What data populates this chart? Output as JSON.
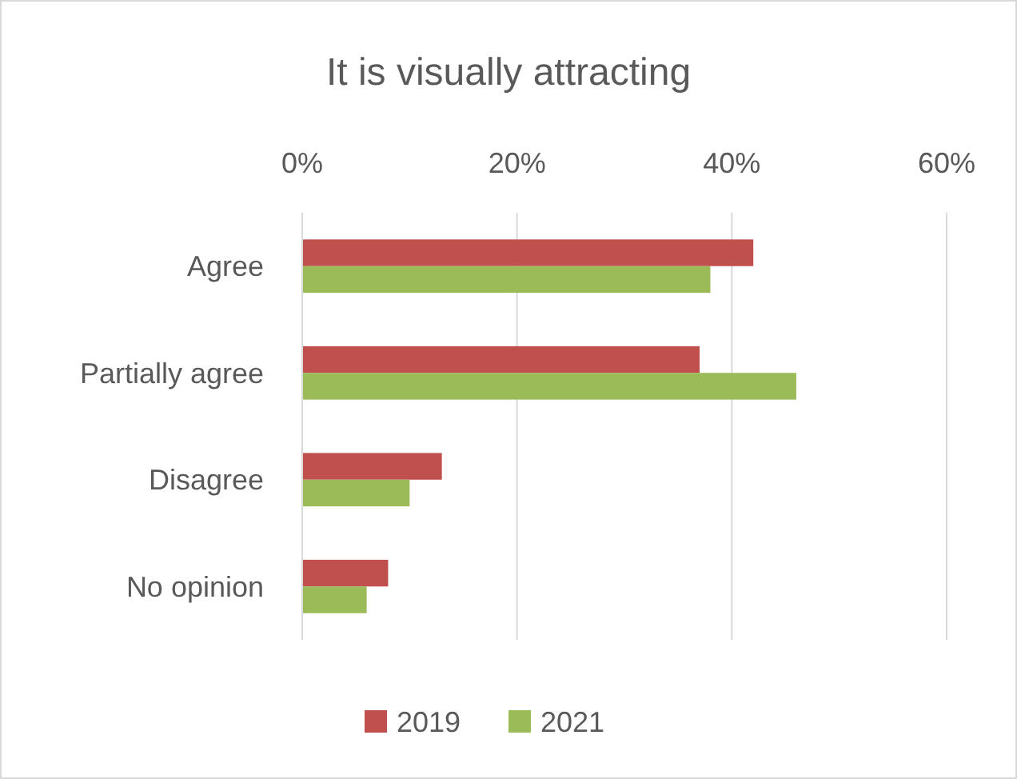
{
  "chart_data": {
    "type": "bar",
    "orientation": "horizontal",
    "title": "It is visually attracting",
    "categories": [
      "Agree",
      "Partially agree",
      "Disagree",
      "No opinion"
    ],
    "series": [
      {
        "name": "2019",
        "color": "#c0504d",
        "values": [
          42,
          37,
          13,
          8
        ]
      },
      {
        "name": "2021",
        "color": "#9bbb59",
        "values": [
          38,
          46,
          10,
          6
        ]
      }
    ],
    "xlim": [
      0,
      60
    ],
    "xticks": [
      {
        "value": 0,
        "label": "0%"
      },
      {
        "value": 20,
        "label": "20%"
      },
      {
        "value": 40,
        "label": "40%"
      },
      {
        "value": 60,
        "label": "60%"
      }
    ],
    "grid": "x",
    "legend": "bottom"
  }
}
